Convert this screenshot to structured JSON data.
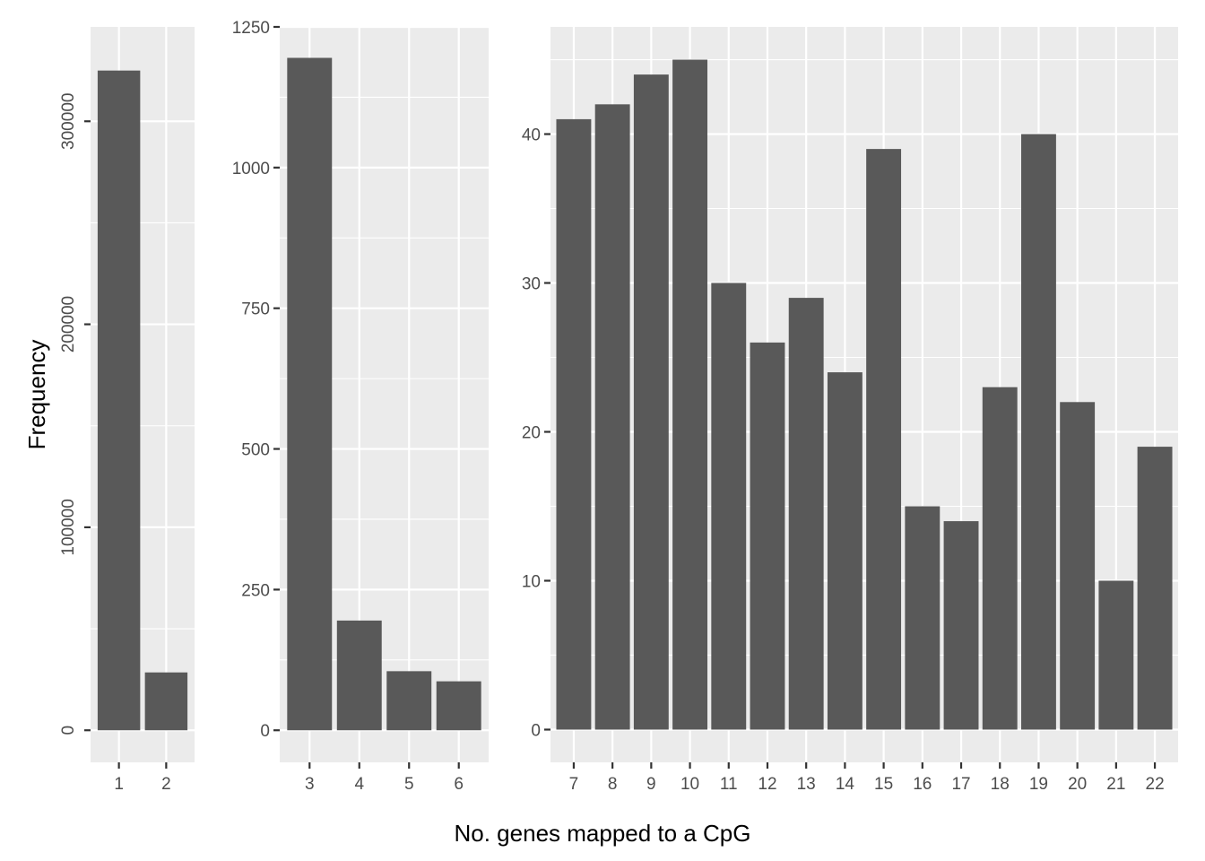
{
  "chart_data": [
    {
      "type": "bar",
      "categories": [
        "1",
        "2"
      ],
      "values": [
        325000,
        28500
      ],
      "ylim": [
        -15800,
        346500
      ],
      "yticks": [
        0,
        100000,
        200000,
        300000
      ],
      "ytick_labels": [
        "0",
        "100000",
        "200000",
        "300000"
      ],
      "ytick_rotated": true
    },
    {
      "type": "bar",
      "categories": [
        "3",
        "4",
        "5",
        "6"
      ],
      "values": [
        1195,
        195,
        105,
        87
      ],
      "ylim": [
        -57,
        1250
      ],
      "yticks": [
        0,
        250,
        500,
        750,
        1000,
        1250
      ],
      "ytick_labels": [
        "0",
        "250",
        "500",
        "750",
        "1000",
        "1250"
      ],
      "ytick_rotated": false
    },
    {
      "type": "bar",
      "categories": [
        "7",
        "8",
        "9",
        "10",
        "11",
        "12",
        "13",
        "14",
        "15",
        "16",
        "17",
        "18",
        "19",
        "20",
        "21",
        "22"
      ],
      "values": [
        41,
        42,
        44,
        45,
        30,
        26,
        29,
        24,
        39,
        15,
        14,
        23,
        40,
        22,
        10,
        19
      ],
      "ylim": [
        -2.2,
        47.2
      ],
      "yticks": [
        0,
        10,
        20,
        30,
        40
      ],
      "ytick_labels": [
        "0",
        "10",
        "20",
        "30",
        "40"
      ],
      "ytick_rotated": false
    }
  ],
  "xlabel": "No. genes mapped to a CpG",
  "ylabel": "Frequency",
  "colors": {
    "panel_background": "#ebebeb",
    "grid": "#ffffff",
    "bar": "#595959",
    "tick_text": "#4d4d4d",
    "tick_mark": "#333333",
    "title_text": "#000000"
  },
  "grid": true
}
